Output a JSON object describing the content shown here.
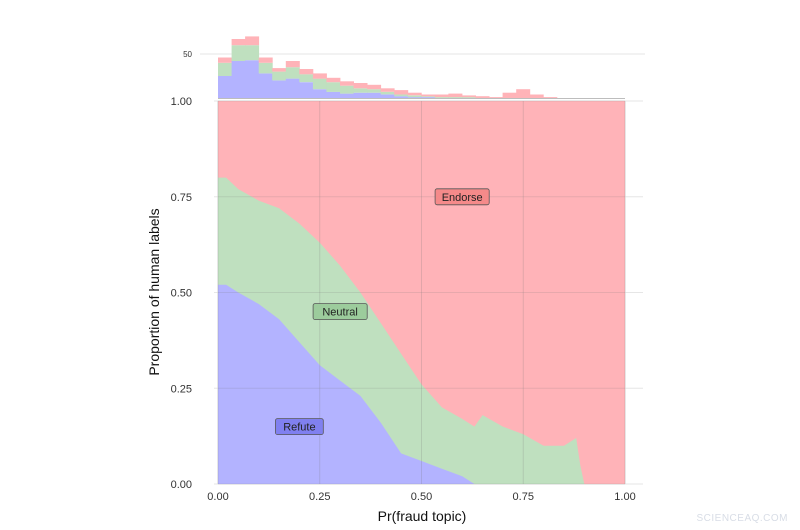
{
  "chart_data": {
    "type": "area",
    "title": "",
    "xlabel": "Pr(fraud topic)",
    "ylabel": "Proportion of human labels",
    "xlim": [
      0,
      1
    ],
    "ylim": [
      0,
      1
    ],
    "x_ticks": [
      "0.00",
      "0.25",
      "0.50",
      "0.75",
      "1.00"
    ],
    "y_ticks": [
      "0.00",
      "0.25",
      "0.50",
      "0.75",
      "1.00"
    ],
    "colors": {
      "Refute": "#b3b3ff",
      "Neutral": "#bfe0bf",
      "Endorse": "#ffb3b8"
    },
    "label_colors": {
      "Refute": "#8080f0",
      "Neutral": "#9ccc9c",
      "Endorse": "#f58a8a"
    },
    "area_labels": [
      {
        "name": "Endorse",
        "x": 0.6,
        "y": 0.75
      },
      {
        "name": "Neutral",
        "x": 0.3,
        "y": 0.45
      },
      {
        "name": "Refute",
        "x": 0.2,
        "y": 0.15
      }
    ],
    "boundaries": {
      "x": [
        0.0,
        0.02,
        0.05,
        0.1,
        0.15,
        0.2,
        0.25,
        0.3,
        0.35,
        0.4,
        0.45,
        0.5,
        0.55,
        0.6,
        0.63,
        0.65,
        0.7,
        0.75,
        0.8,
        0.85,
        0.88,
        0.89,
        0.9,
        1.0
      ],
      "refute_top": [
        0.52,
        0.52,
        0.5,
        0.47,
        0.43,
        0.37,
        0.31,
        0.27,
        0.23,
        0.16,
        0.08,
        0.06,
        0.04,
        0.02,
        0.0,
        0.0,
        0.0,
        0.0,
        0.0,
        0.0,
        0.0,
        0.0,
        0.0,
        0.0
      ],
      "neutral_top": [
        0.8,
        0.8,
        0.77,
        0.74,
        0.72,
        0.68,
        0.63,
        0.57,
        0.5,
        0.42,
        0.34,
        0.26,
        0.2,
        0.17,
        0.15,
        0.18,
        0.15,
        0.13,
        0.1,
        0.1,
        0.12,
        0.05,
        0.0,
        0.0
      ]
    },
    "histogram": {
      "y_ticks": [
        "50"
      ],
      "y_tick_values": [
        50
      ],
      "ylim": [
        0,
        80
      ],
      "bin_width": 0.0333,
      "bins": [
        {
          "refute": 25,
          "neutral": 15,
          "endorse": 6
        },
        {
          "refute": 42,
          "neutral": 18,
          "endorse": 7
        },
        {
          "refute": 43,
          "neutral": 17,
          "endorse": 10
        },
        {
          "refute": 28,
          "neutral": 12,
          "endorse": 6
        },
        {
          "refute": 20,
          "neutral": 10,
          "endorse": 4
        },
        {
          "refute": 22,
          "neutral": 13,
          "endorse": 7
        },
        {
          "refute": 18,
          "neutral": 9,
          "endorse": 6
        },
        {
          "refute": 10,
          "neutral": 12,
          "endorse": 6
        },
        {
          "refute": 7,
          "neutral": 11,
          "endorse": 5
        },
        {
          "refute": 5,
          "neutral": 9,
          "endorse": 5
        },
        {
          "refute": 6,
          "neutral": 5,
          "endorse": 6
        },
        {
          "refute": 6,
          "neutral": 4,
          "endorse": 5
        },
        {
          "refute": 4,
          "neutral": 3,
          "endorse": 4
        },
        {
          "refute": 2,
          "neutral": 2,
          "endorse": 5
        },
        {
          "refute": 1,
          "neutral": 2,
          "endorse": 3
        },
        {
          "refute": 1,
          "neutral": 1,
          "endorse": 2
        },
        {
          "refute": 0,
          "neutral": 1,
          "endorse": 3
        },
        {
          "refute": 0,
          "neutral": 1,
          "endorse": 4
        },
        {
          "refute": 0,
          "neutral": 1,
          "endorse": 2
        },
        {
          "refute": 0,
          "neutral": 0,
          "endorse": 2
        },
        {
          "refute": 0,
          "neutral": 0,
          "endorse": 1
        },
        {
          "refute": 0,
          "neutral": 0,
          "endorse": 6
        },
        {
          "refute": 0,
          "neutral": 0,
          "endorse": 10
        },
        {
          "refute": 0,
          "neutral": 0,
          "endorse": 4
        },
        {
          "refute": 0,
          "neutral": 0,
          "endorse": 1
        },
        {
          "refute": 0,
          "neutral": 0,
          "endorse": 0
        },
        {
          "refute": 0,
          "neutral": 0,
          "endorse": 0
        },
        {
          "refute": 0,
          "neutral": 0,
          "endorse": 0
        },
        {
          "refute": 0,
          "neutral": 0,
          "endorse": 0
        },
        {
          "refute": 0,
          "neutral": 0,
          "endorse": 0
        }
      ]
    }
  },
  "watermark": "SCIENCEAQ.COM"
}
